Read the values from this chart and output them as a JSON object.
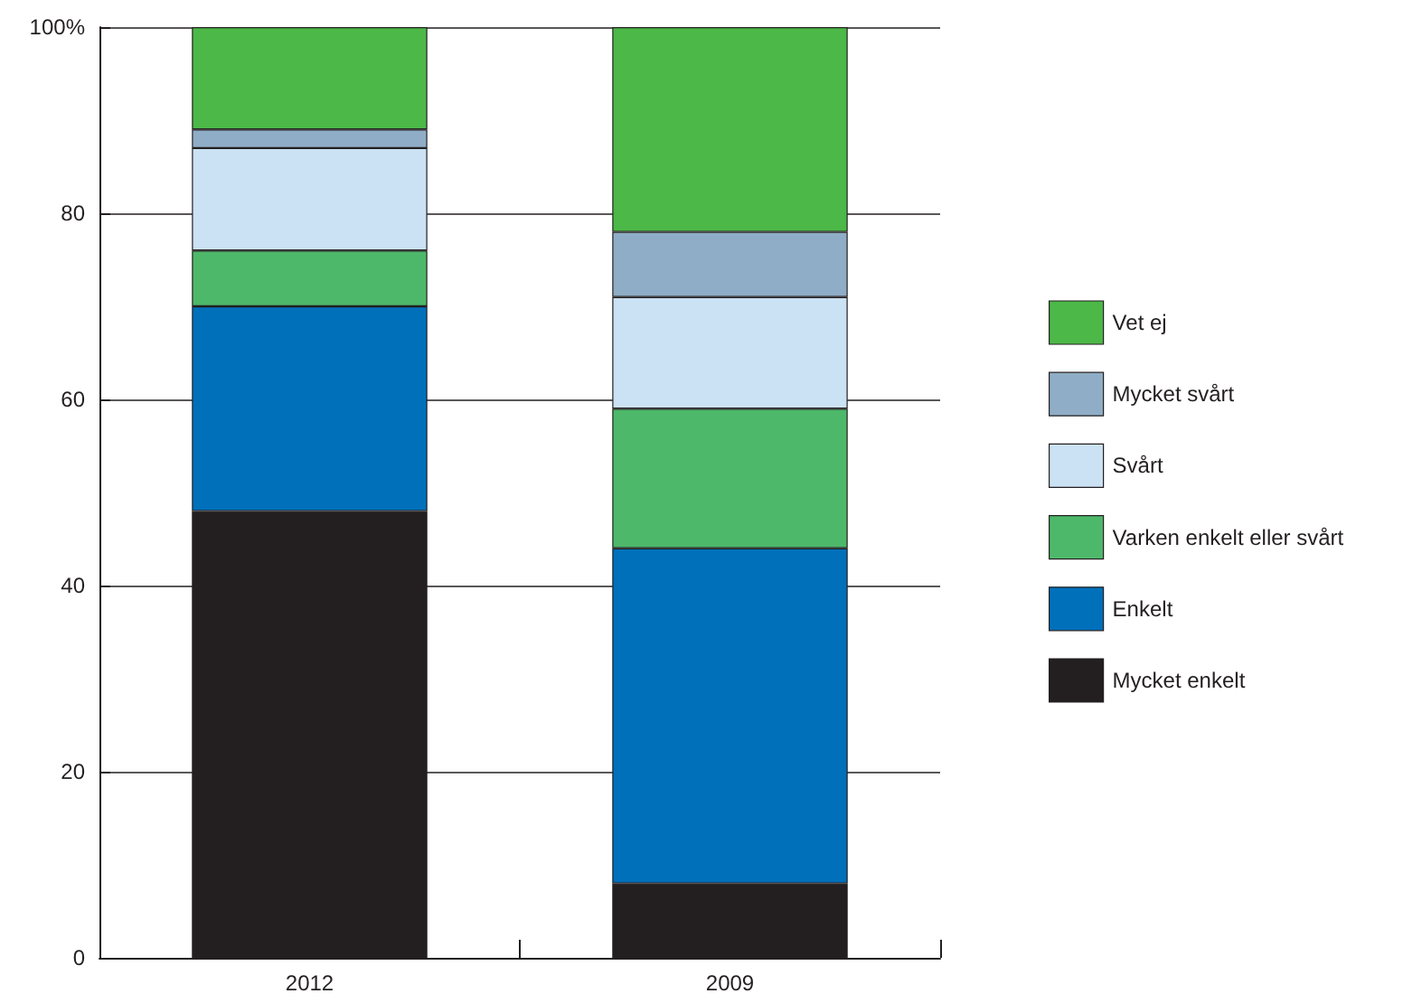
{
  "chart_data": {
    "type": "bar",
    "stacked": true,
    "categories": [
      "2012",
      "2009"
    ],
    "series": [
      {
        "name": "Mycket enkelt",
        "color": "#231f20",
        "values": [
          48,
          8
        ]
      },
      {
        "name": "Enkelt",
        "color": "#0070bb",
        "values": [
          22,
          36
        ]
      },
      {
        "name": "Varken enkelt eller svårt",
        "color": "#4db86a",
        "values": [
          6,
          15
        ]
      },
      {
        "name": "Svårt",
        "color": "#cbe1f4",
        "values": [
          11,
          12
        ]
      },
      {
        "name": "Mycket svårt",
        "color": "#8fadc6",
        "values": [
          2,
          7
        ]
      },
      {
        "name": "Vet ej",
        "color": "#4cb848",
        "values": [
          11,
          22
        ]
      }
    ],
    "ylim": [
      0,
      100
    ],
    "yticks": [
      0,
      20,
      40,
      60,
      80,
      {
        "value": 100,
        "label": "100%"
      }
    ],
    "grid": "y",
    "legend": "right"
  }
}
